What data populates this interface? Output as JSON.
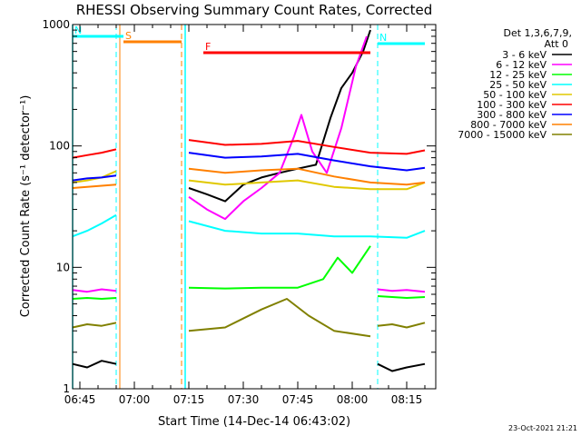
{
  "chart_data": {
    "type": "line",
    "title": "RHESSI Observing Summary Count Rates, Corrected",
    "xlabel": "Start Time (14-Dec-14 06:43:02)",
    "ylabel": "Corrected Count Rate (s⁻¹ detector⁻¹)",
    "y_scale": "log",
    "ylim": [
      1,
      1000
    ],
    "xlim": [
      "06:43",
      "08:23"
    ],
    "x_ticks": [
      "06:45",
      "07:00",
      "07:15",
      "07:30",
      "07:45",
      "08:00",
      "08:15"
    ],
    "y_ticks": [
      {
        "value": 1,
        "label": "1"
      },
      {
        "value": 10,
        "label": "10"
      },
      {
        "value": 100,
        "label": "100"
      },
      {
        "value": 1000,
        "label": "1000"
      }
    ],
    "legend": {
      "placement": "right",
      "header_line1": "Det 1,3,6,7,9,",
      "header_line2": "Att 0",
      "entries": [
        {
          "label": "3 - 6 keV",
          "color": "#000000"
        },
        {
          "label": "6 - 12 keV",
          "color": "#ff00ff"
        },
        {
          "label": "12 - 25 keV",
          "color": "#00ff00"
        },
        {
          "label": "25 - 50 keV",
          "color": "#00ffff"
        },
        {
          "label": "50 - 100 keV",
          "color": "#e0c800"
        },
        {
          "label": "100 - 300 keV",
          "color": "#ff0000"
        },
        {
          "label": "300 - 800 keV",
          "color": "#0000ff"
        },
        {
          "label": "800 - 7000 keV",
          "color": "#ff8000"
        },
        {
          "label": "7000 - 15000 keV",
          "color": "#808000"
        }
      ]
    },
    "flag_bars": [
      {
        "label": "S",
        "color": "#ff8000",
        "start": "06:57",
        "end": "07:13"
      },
      {
        "label": "N",
        "color": "#00ffff",
        "start": "06:43",
        "end": "06:57"
      },
      {
        "label": "N",
        "color": "#00ffff",
        "start": "08:07",
        "end": "08:20"
      },
      {
        "label": "F",
        "color": "#ff0000",
        "start": "07:19",
        "end": "08:05"
      }
    ],
    "night_intervals": [
      {
        "start": "06:43",
        "end": "06:55",
        "color": "#00ffff"
      },
      {
        "start": "07:14",
        "end": "08:07",
        "color": "#00ffff"
      }
    ],
    "saa_intervals": [
      {
        "start": "06:56",
        "end": "07:13",
        "color": "#ff8000"
      }
    ],
    "series": [
      {
        "name": "3 - 6 keV",
        "color": "#000000",
        "segments": [
          {
            "x": [
              "06:43",
              "06:47",
              "06:51",
              "06:55"
            ],
            "y": [
              1.6,
              1.5,
              1.7,
              1.6
            ]
          },
          {
            "x": [
              "07:15",
              "07:20",
              "07:25",
              "07:30",
              "07:35",
              "07:40",
              "07:45",
              "07:50",
              "07:54",
              "07:57",
              "08:00",
              "08:03",
              "08:05"
            ],
            "y": [
              45,
              40,
              35,
              48,
              55,
              60,
              65,
              70,
              170,
              300,
              400,
              600,
              900
            ]
          },
          {
            "x": [
              "08:07",
              "08:11",
              "08:15",
              "08:20"
            ],
            "y": [
              1.6,
              1.4,
              1.5,
              1.6
            ]
          }
        ]
      },
      {
        "name": "6 - 12 keV",
        "color": "#ff00ff",
        "segments": [
          {
            "x": [
              "06:43",
              "06:47",
              "06:51",
              "06:55"
            ],
            "y": [
              6.5,
              6.3,
              6.6,
              6.4
            ]
          },
          {
            "x": [
              "07:15",
              "07:20",
              "07:25",
              "07:30",
              "07:35",
              "07:40",
              "07:44",
              "07:46",
              "07:49",
              "07:53",
              "07:57",
              "08:01",
              "08:04"
            ],
            "y": [
              38,
              30,
              25,
              35,
              45,
              60,
              120,
              180,
              90,
              60,
              140,
              450,
              800
            ]
          },
          {
            "x": [
              "08:07",
              "08:11",
              "08:15",
              "08:20"
            ],
            "y": [
              6.6,
              6.4,
              6.5,
              6.3
            ]
          }
        ]
      },
      {
        "name": "12 - 25 keV",
        "color": "#00ff00",
        "segments": [
          {
            "x": [
              "06:43",
              "06:47",
              "06:51",
              "06:55"
            ],
            "y": [
              5.5,
              5.6,
              5.5,
              5.6
            ]
          },
          {
            "x": [
              "07:15",
              "07:25",
              "07:35",
              "07:45",
              "07:52",
              "07:56",
              "08:00",
              "08:05"
            ],
            "y": [
              6.8,
              6.7,
              6.8,
              6.8,
              8.0,
              12,
              9,
              15
            ]
          },
          {
            "x": [
              "08:07",
              "08:11",
              "08:15",
              "08:20"
            ],
            "y": [
              5.8,
              5.7,
              5.6,
              5.7
            ]
          }
        ]
      },
      {
        "name": "25 - 50 keV",
        "color": "#00ffff",
        "segments": [
          {
            "x": [
              "06:43",
              "06:47",
              "06:51",
              "06:55"
            ],
            "y": [
              18,
              20,
              23,
              27
            ]
          },
          {
            "x": [
              "07:15",
              "07:25",
              "07:35",
              "07:45",
              "07:55",
              "08:05",
              "08:15",
              "08:20"
            ],
            "y": [
              24,
              20,
              19,
              19,
              18,
              18,
              17.5,
              20
            ]
          }
        ]
      },
      {
        "name": "50 - 100 keV",
        "color": "#e0c800",
        "segments": [
          {
            "x": [
              "06:43",
              "06:47",
              "06:51",
              "06:55"
            ],
            "y": [
              50,
              52,
              55,
              62
            ]
          },
          {
            "x": [
              "07:15",
              "07:25",
              "07:35",
              "07:45",
              "07:55",
              "08:05",
              "08:15",
              "08:20"
            ],
            "y": [
              52,
              48,
              50,
              52,
              46,
              44,
              44,
              50
            ]
          }
        ]
      },
      {
        "name": "100 - 300 keV",
        "color": "#ff0000",
        "segments": [
          {
            "x": [
              "06:43",
              "06:47",
              "06:51",
              "06:55"
            ],
            "y": [
              80,
              84,
              88,
              94
            ]
          },
          {
            "x": [
              "07:15",
              "07:25",
              "07:35",
              "07:45",
              "07:55",
              "08:05",
              "08:15",
              "08:20"
            ],
            "y": [
              112,
              102,
              104,
              110,
              98,
              88,
              86,
              92
            ]
          }
        ]
      },
      {
        "name": "300 - 800 keV",
        "color": "#0000ff",
        "segments": [
          {
            "x": [
              "06:43",
              "06:47",
              "06:51",
              "06:55"
            ],
            "y": [
              52,
              54,
              55,
              57
            ]
          },
          {
            "x": [
              "07:15",
              "07:25",
              "07:35",
              "07:45",
              "07:55",
              "08:05",
              "08:15",
              "08:20"
            ],
            "y": [
              88,
              80,
              82,
              86,
              76,
              68,
              63,
              66
            ]
          }
        ]
      },
      {
        "name": "800 - 7000 keV",
        "color": "#ff8000",
        "segments": [
          {
            "x": [
              "06:43",
              "06:47",
              "06:51",
              "06:55"
            ],
            "y": [
              45,
              46,
              47,
              48
            ]
          },
          {
            "x": [
              "07:15",
              "07:25",
              "07:35",
              "07:45",
              "07:55",
              "08:05",
              "08:15",
              "08:20"
            ],
            "y": [
              65,
              60,
              63,
              65,
              56,
              50,
              48,
              50
            ]
          }
        ]
      },
      {
        "name": "7000 - 15000 keV",
        "color": "#808000",
        "segments": [
          {
            "x": [
              "06:43",
              "06:47",
              "06:51",
              "06:55"
            ],
            "y": [
              3.2,
              3.4,
              3.3,
              3.5
            ]
          },
          {
            "x": [
              "07:15",
              "07:25",
              "07:35",
              "07:42",
              "07:48",
              "07:55",
              "08:05"
            ],
            "y": [
              3.0,
              3.2,
              4.5,
              5.5,
              4.0,
              3.0,
              2.7
            ]
          },
          {
            "x": [
              "08:07",
              "08:11",
              "08:15",
              "08:20"
            ],
            "y": [
              3.3,
              3.4,
              3.2,
              3.5
            ]
          }
        ]
      }
    ]
  },
  "footer": {
    "timestamp": "23-Oct-2021 21:21"
  }
}
